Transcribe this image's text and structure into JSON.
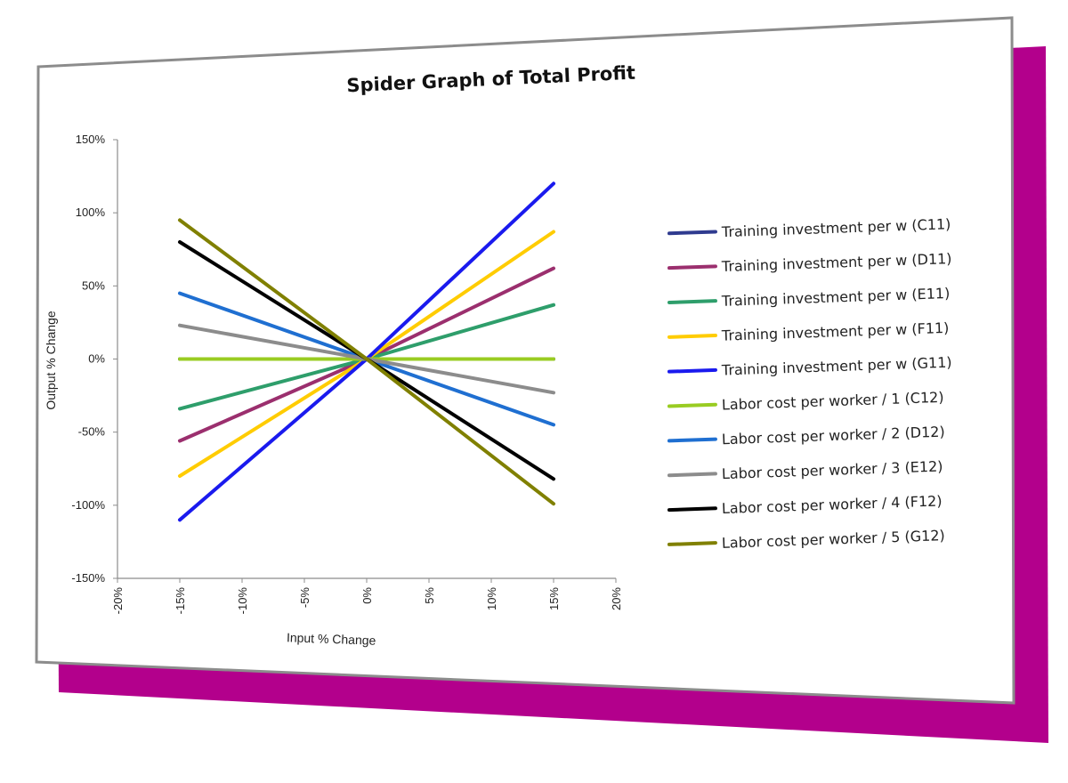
{
  "colors": {
    "backdrop": "#b3008c",
    "card_border": "#8c8c8c",
    "axis": "#8c8c8c"
  },
  "chart_data": {
    "type": "line",
    "title": "Spider Graph of Total Profit",
    "xlabel": "Input % Change",
    "ylabel": "Output % Change",
    "xlim": [
      -0.2,
      0.2
    ],
    "ylim": [
      -1.5,
      1.5
    ],
    "x_ticks": [
      "-20%",
      "-15%",
      "-10%",
      "-5%",
      "0%",
      "5%",
      "10%",
      "15%",
      "20%"
    ],
    "y_ticks": [
      "150%",
      "100%",
      "50%",
      "0%",
      "-50%",
      "-100%",
      "-150%"
    ],
    "grid": false,
    "legend_position": "right",
    "x": [
      -0.15,
      0,
      0.15
    ],
    "series": [
      {
        "name": "Training investment per w (C11)",
        "color": "#2f3b8f",
        "values": [
          0,
          0,
          0
        ]
      },
      {
        "name": "Training investment per w (D11)",
        "color": "#9b2f6e",
        "values": [
          -0.56,
          0,
          0.62
        ]
      },
      {
        "name": "Training investment per w (E11)",
        "color": "#2e9e6b",
        "values": [
          -0.34,
          0,
          0.37
        ]
      },
      {
        "name": "Training investment per w (F11)",
        "color": "#ffcc00",
        "values": [
          -0.8,
          0,
          0.87
        ]
      },
      {
        "name": "Training investment per w (G11)",
        "color": "#1a1aee",
        "values": [
          -1.1,
          0,
          1.2
        ]
      },
      {
        "name": "Labor cost per worker / 1 (C12)",
        "color": "#99cc22",
        "values": [
          0,
          0,
          0
        ]
      },
      {
        "name": "Labor cost per worker / 2 (D12)",
        "color": "#1f6fd1",
        "values": [
          0.45,
          0,
          -0.45
        ]
      },
      {
        "name": "Labor cost per worker / 3 (E12)",
        "color": "#8c8c8c",
        "values": [
          0.23,
          0,
          -0.23
        ]
      },
      {
        "name": "Labor cost per worker / 4 (F12)",
        "color": "#000000",
        "values": [
          0.8,
          0,
          -0.82
        ]
      },
      {
        "name": "Labor cost per worker / 5 (G12)",
        "color": "#808000",
        "values": [
          0.95,
          0,
          -0.99
        ]
      }
    ]
  }
}
